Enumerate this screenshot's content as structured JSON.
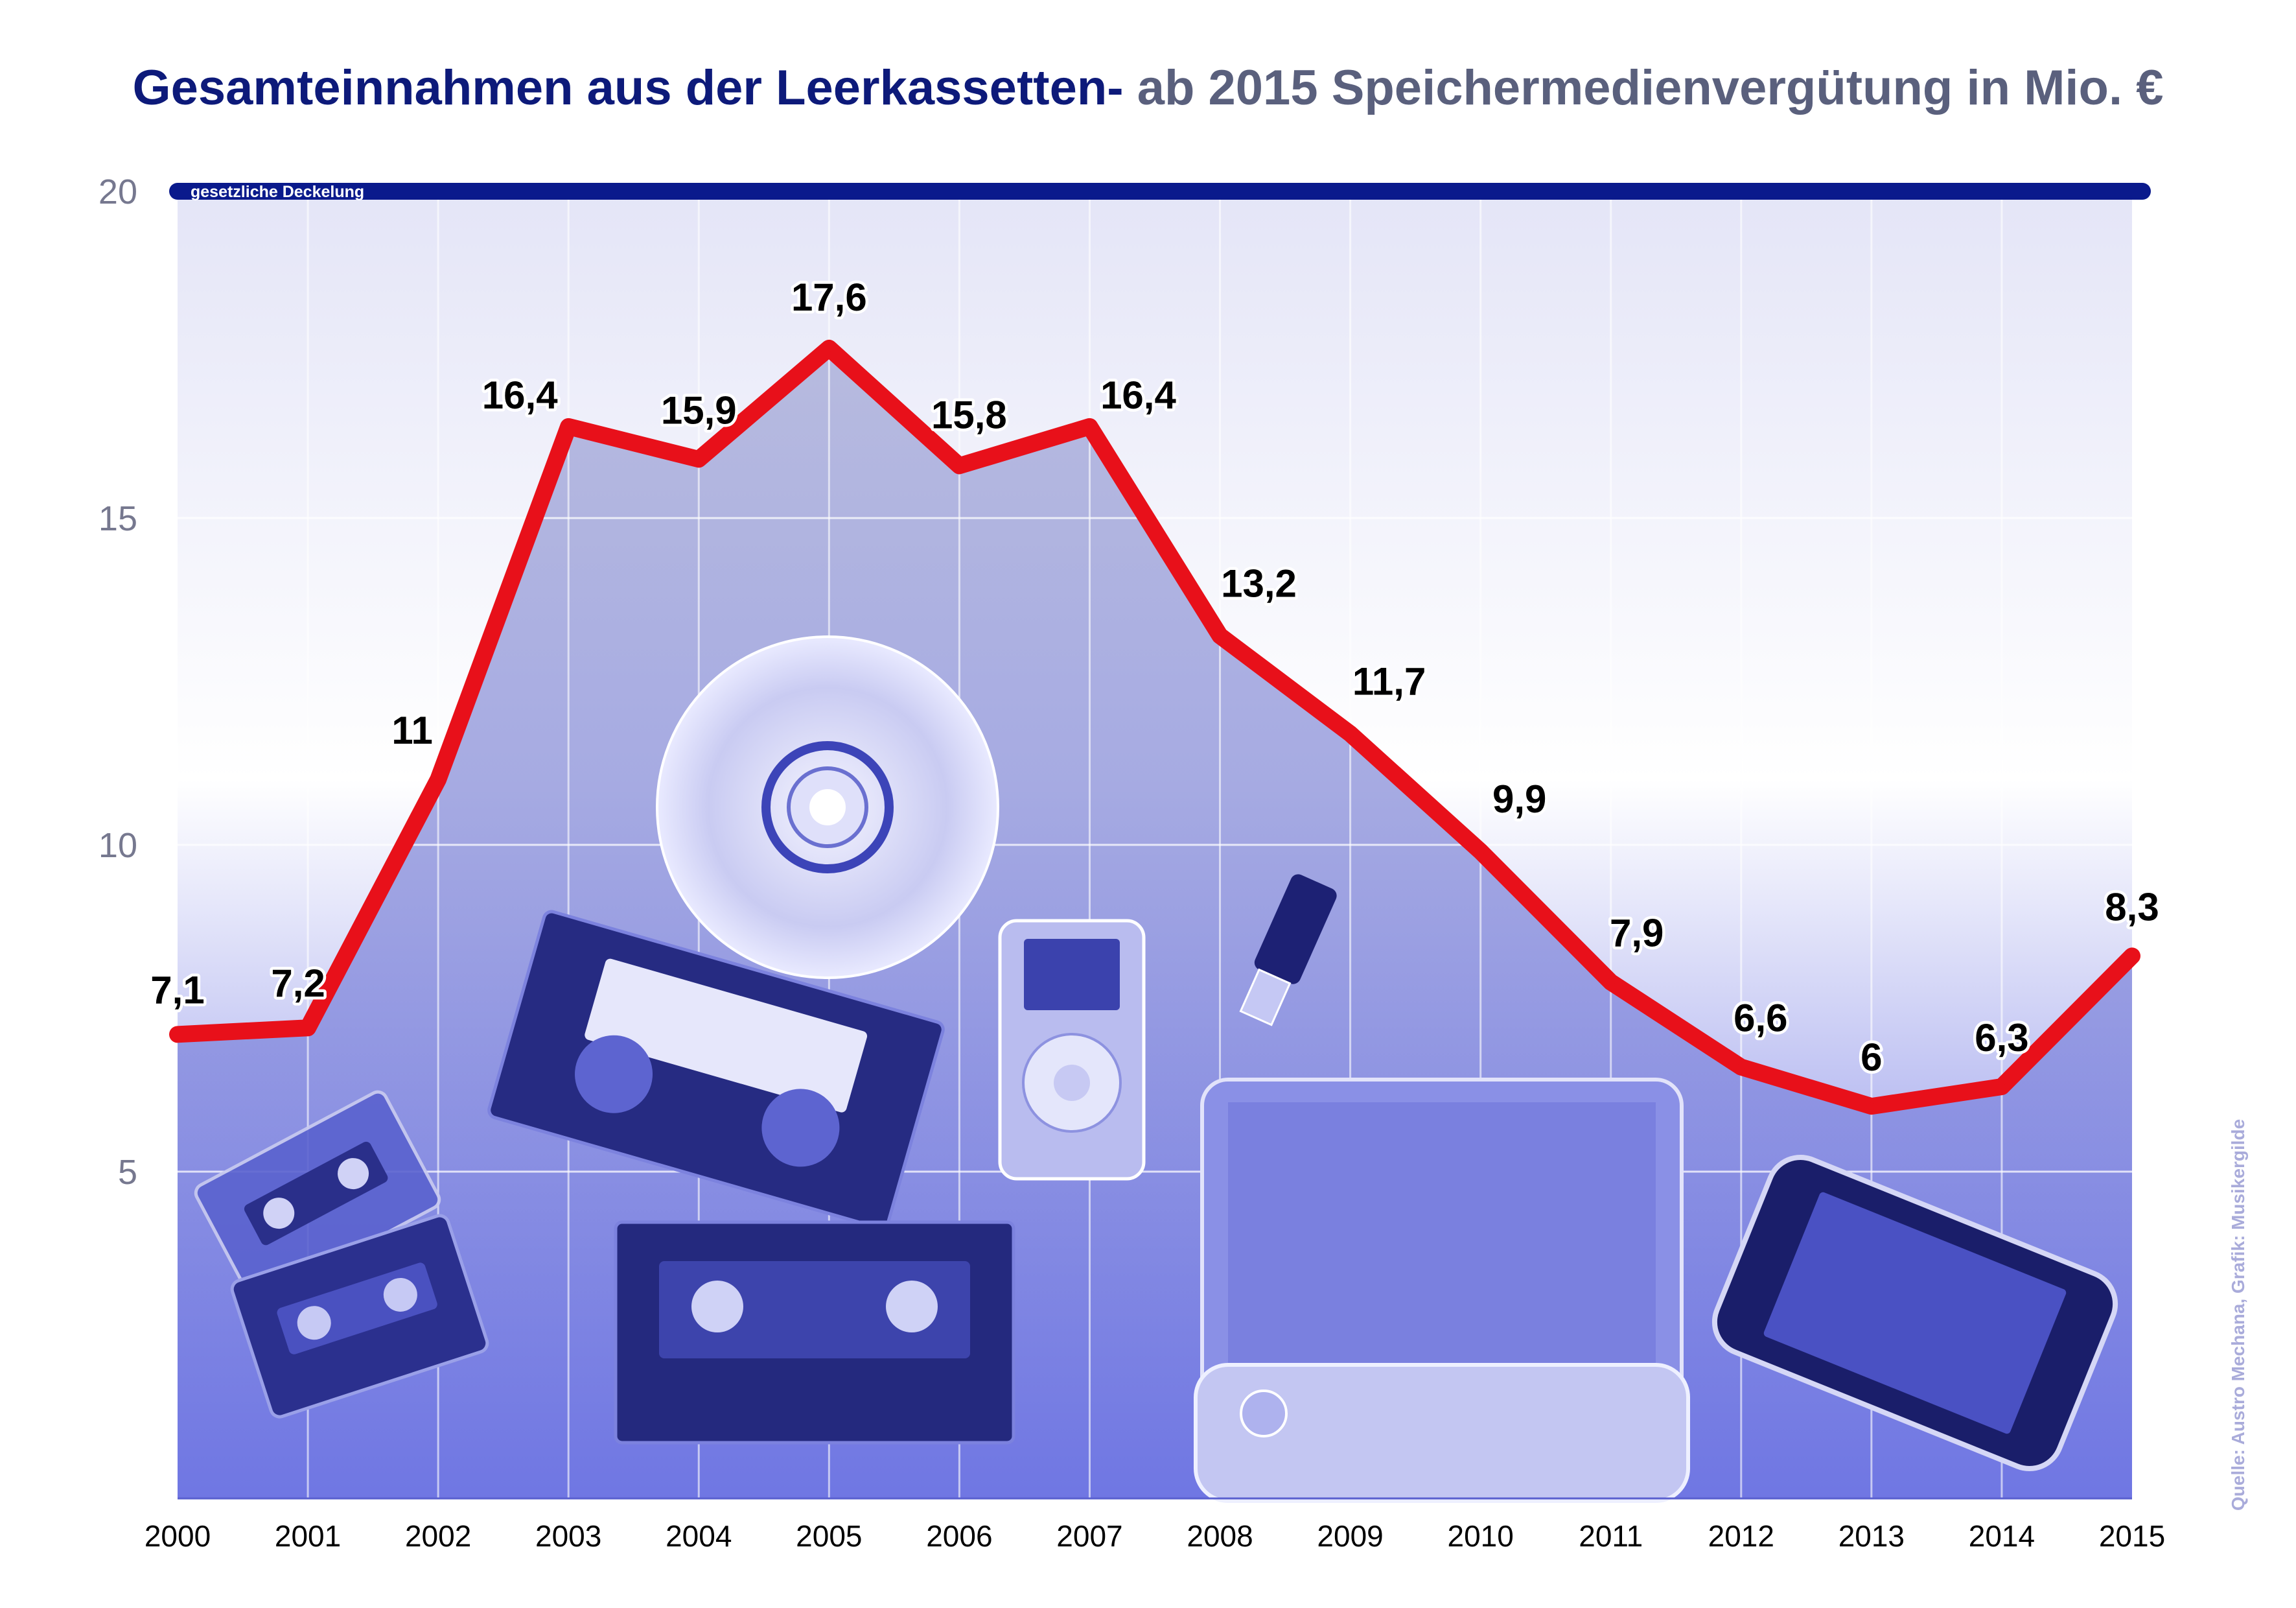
{
  "title_part1": "Gesamteinnahmen aus der Leerkassetten-",
  "title_part2": "ab 2015 Speichermedienvergütung in Mio. €",
  "source": "Quelle: Austro Mechana, Grafik: Musikergilde",
  "colors": {
    "title_dark": "#0d1a7a",
    "title_gray": "#5a607d",
    "line": "#e8101a",
    "cap_line": "#0a1a8c",
    "fill": "#7a82e6",
    "plot_top": "#e6e7f8",
    "plot_bottom": "#6f76e3"
  },
  "illustration_icons": [
    "cd-icon",
    "audio-cassette-icon",
    "vhs-cassette-icon",
    "mp3-player-icon",
    "usb-stick-icon",
    "external-hard-drive-icon",
    "smartphone-icon"
  ],
  "chart_data": {
    "type": "area",
    "title": "Gesamteinnahmen aus der Leerkassetten- ab 2015 Speichermedienvergütung in Mio. €",
    "x": [
      "2000",
      "2001",
      "2002",
      "2003",
      "2004",
      "2005",
      "2006",
      "2007",
      "2008",
      "2009",
      "2010",
      "2011",
      "2012",
      "2013",
      "2014",
      "2015"
    ],
    "values": [
      7.1,
      7.2,
      11,
      16.4,
      15.9,
      17.6,
      15.8,
      16.4,
      13.2,
      11.7,
      9.9,
      7.9,
      6.6,
      6,
      6.3,
      8.3
    ],
    "value_labels": [
      "7,1",
      "7,2",
      "11",
      "16,4",
      "15,9",
      "17,6",
      "15,8",
      "16,4",
      "13,2",
      "11,7",
      "9,9",
      "7,9",
      "6,6",
      "6",
      "6,3",
      "8,3"
    ],
    "y_ticks": [
      5,
      10,
      15,
      20
    ],
    "y_tick_labels": [
      "5",
      "10",
      "15",
      "20"
    ],
    "ylim": [
      0,
      20
    ],
    "cap_line": {
      "value": 20,
      "label": "gesetzliche Deckelung"
    },
    "xlabel": "",
    "ylabel": "",
    "grid": true,
    "legend": false
  }
}
